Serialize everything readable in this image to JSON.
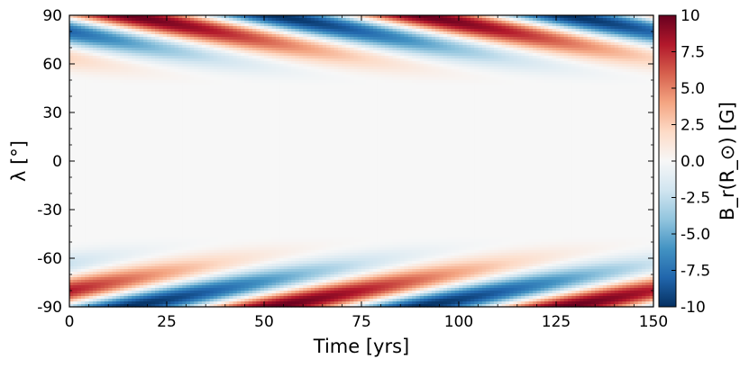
{
  "chart_data": {
    "type": "heatmap",
    "title": "",
    "xlabel": "Time [yrs]",
    "ylabel": "λ [°]",
    "xlim": [
      0,
      150
    ],
    "ylim": [
      -90,
      90
    ],
    "x_ticks": [
      0,
      25,
      50,
      75,
      100,
      125,
      150
    ],
    "x_tick_labels": [
      "0",
      "25",
      "50",
      "75",
      "100",
      "125",
      "150"
    ],
    "y_ticks": [
      90,
      60,
      30,
      0,
      -30,
      -60,
      -90
    ],
    "y_tick_labels": [
      "90",
      "60",
      "30",
      "0",
      "-30",
      "-60",
      "-90"
    ],
    "colorbar": {
      "label": "B_r(R_⊙) [G]",
      "range": [
        -10,
        10
      ],
      "ticks": [
        10,
        7.5,
        5,
        2.5,
        0,
        -2.5,
        -5,
        -7.5,
        -10
      ],
      "tick_labels": [
        "10",
        "7.5",
        "5.0",
        "2.5",
        "0.0",
        "-2.5",
        "-5.0",
        "-7.5",
        "-10"
      ],
      "colormap": "RdBu_r",
      "colors": [
        "#053061",
        "#2166ac",
        "#4393c3",
        "#92c5de",
        "#d1e5f0",
        "#f7f7f7",
        "#fddbc7",
        "#f4a582",
        "#d6604d",
        "#b2182b",
        "#67001f"
      ]
    },
    "field_model": {
      "description": "Poleward-drifting polar field pattern, antisymmetric between hemispheres",
      "period_yrs": 75,
      "max_abs_value": 10,
      "active_latitude_min": 45,
      "peak_latitude": 75,
      "drift_deg_per_yr": 0.5
    }
  }
}
